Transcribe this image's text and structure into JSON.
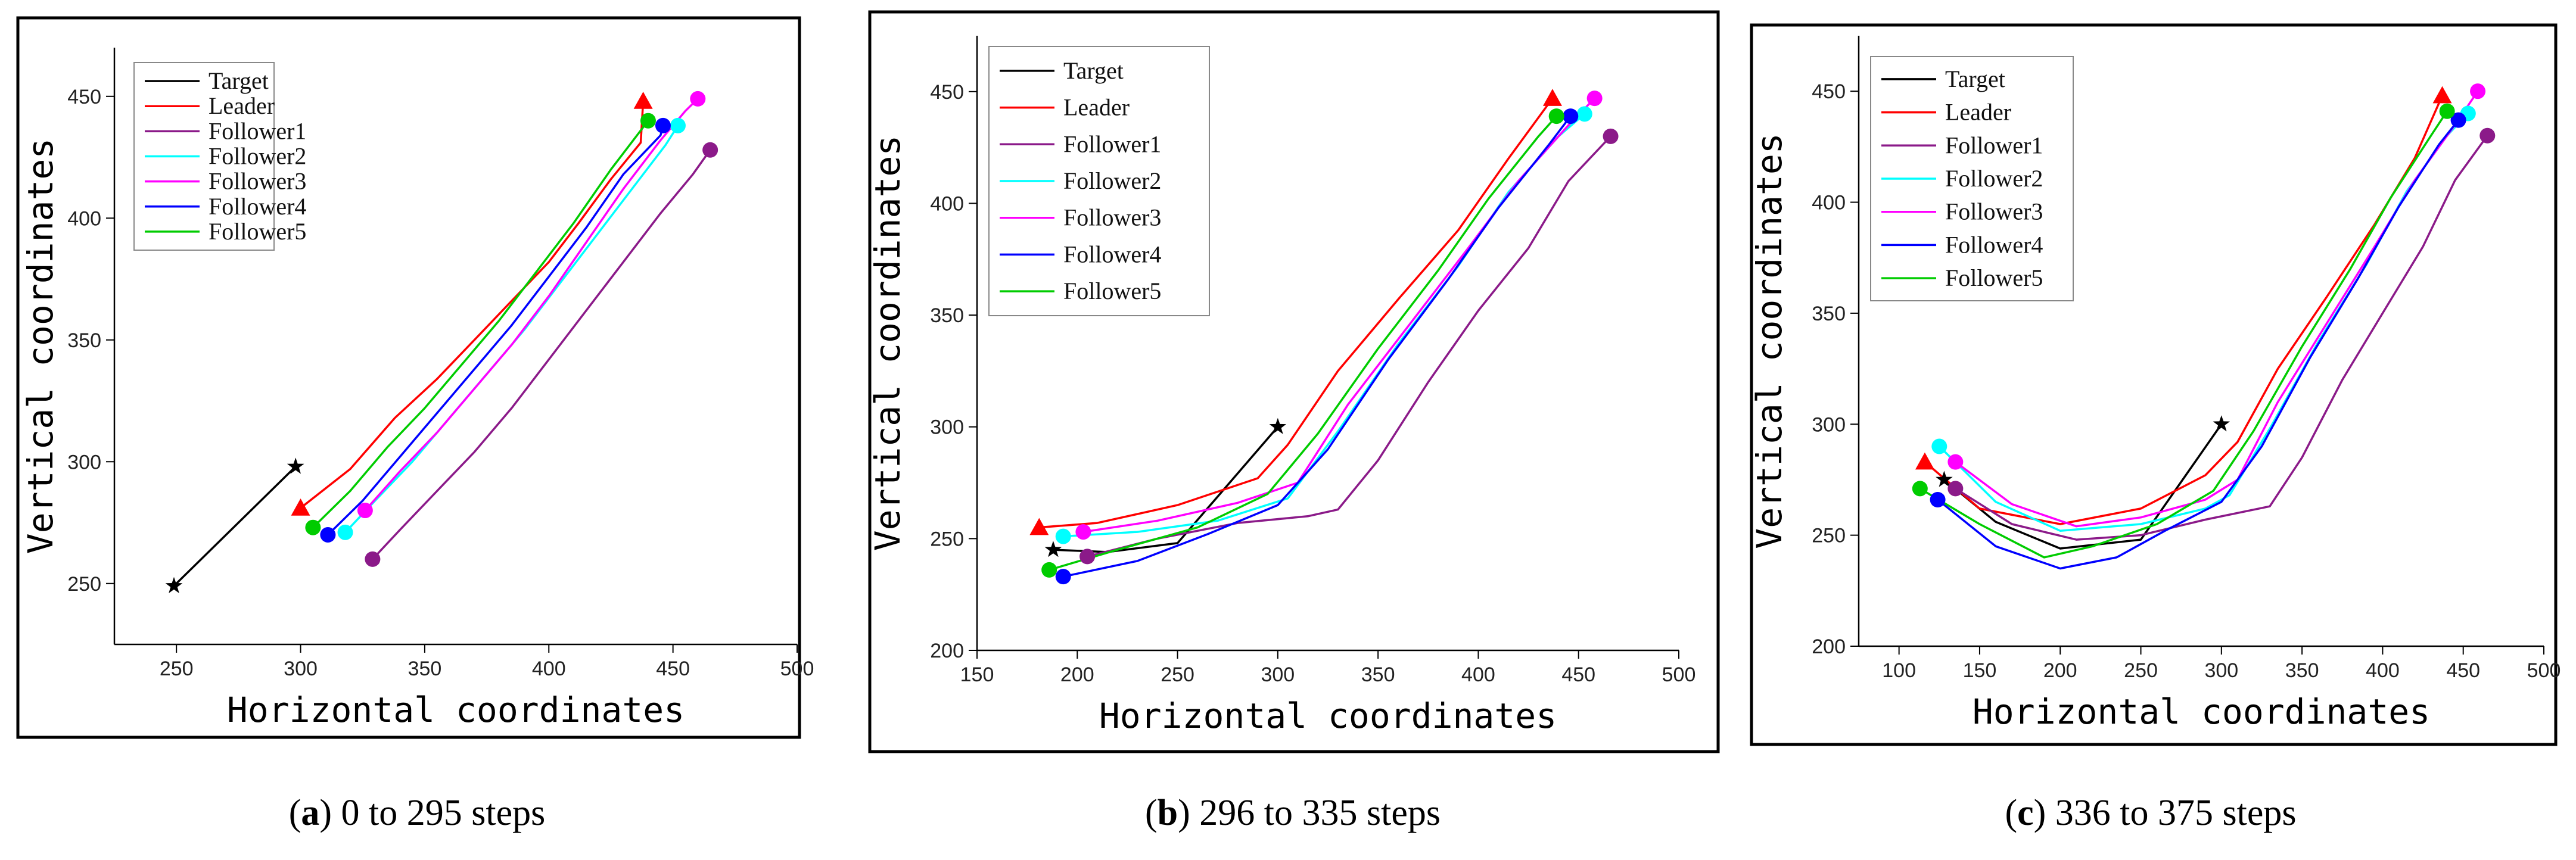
{
  "chart_data": [
    {
      "type": "line",
      "caption_letter": "a",
      "caption_rest": " 0 to 295 steps",
      "xlabel": "Horizontal coordinates",
      "ylabel": "Vertical coordinates",
      "xlim": [
        225,
        500
      ],
      "ylim": [
        225,
        470
      ],
      "xticks": [
        250,
        300,
        350,
        400,
        450,
        500
      ],
      "yticks": [
        250,
        300,
        350,
        400,
        450
      ],
      "legend_position": "top-left",
      "series": [
        {
          "name": "Target",
          "color": "#000000",
          "marker": "star",
          "points": [
            [
              249,
              249
            ],
            [
              298,
              298
            ]
          ]
        },
        {
          "name": "Leader",
          "color": "#ff0000",
          "marker": "triangle",
          "points": [
            [
              300,
              281
            ],
            [
              320,
              297
            ],
            [
              338,
              318
            ],
            [
              355,
              334
            ],
            [
              370,
              350
            ],
            [
              385,
              366
            ],
            [
              400,
              382
            ],
            [
              412,
              398
            ],
            [
              425,
              416
            ],
            [
              437,
              431
            ],
            [
              438,
              448
            ]
          ]
        },
        {
          "name": "Follower1",
          "color": "#8b1a89",
          "marker": "circle",
          "points": [
            [
              329,
              260
            ],
            [
              340,
              272
            ],
            [
              355,
              288
            ],
            [
              370,
              304
            ],
            [
              385,
              322
            ],
            [
              400,
              342
            ],
            [
              415,
              362
            ],
            [
              430,
              382
            ],
            [
              445,
              402
            ],
            [
              458,
              418
            ],
            [
              465,
              428
            ]
          ]
        },
        {
          "name": "Follower2",
          "color": "#00ffff",
          "marker": "circle",
          "points": [
            [
              318,
              271
            ],
            [
              330,
              284
            ],
            [
              345,
              300
            ],
            [
              360,
              318
            ],
            [
              375,
              336
            ],
            [
              390,
              354
            ],
            [
              405,
              374
            ],
            [
              420,
              394
            ],
            [
              435,
              414
            ],
            [
              447,
              430
            ],
            [
              452,
              438
            ]
          ]
        },
        {
          "name": "Follower3",
          "color": "#ff00ff",
          "marker": "circle",
          "points": [
            [
              326,
              280
            ],
            [
              340,
              296
            ],
            [
              355,
              312
            ],
            [
              370,
              330
            ],
            [
              385,
              348
            ],
            [
              400,
              368
            ],
            [
              415,
              390
            ],
            [
              430,
              412
            ],
            [
              445,
              432
            ],
            [
              455,
              444
            ],
            [
              460,
              449
            ]
          ]
        },
        {
          "name": "Follower4",
          "color": "#0000ff",
          "marker": "circle",
          "points": [
            [
              311,
              270
            ],
            [
              325,
              284
            ],
            [
              340,
              302
            ],
            [
              355,
              320
            ],
            [
              370,
              338
            ],
            [
              385,
              356
            ],
            [
              400,
              376
            ],
            [
              415,
              396
            ],
            [
              430,
              418
            ],
            [
              445,
              434
            ],
            [
              446,
              438
            ]
          ]
        },
        {
          "name": "Follower5",
          "color": "#00cc00",
          "marker": "circle",
          "points": [
            [
              305,
              273
            ],
            [
              320,
              288
            ],
            [
              335,
              306
            ],
            [
              350,
              322
            ],
            [
              365,
              340
            ],
            [
              380,
              358
            ],
            [
              395,
              378
            ],
            [
              410,
              398
            ],
            [
              425,
              420
            ],
            [
              437,
              436
            ],
            [
              440,
              440
            ]
          ]
        }
      ]
    },
    {
      "type": "line",
      "caption_letter": "b",
      "caption_rest": " 296 to 335 steps",
      "xlabel": "Horizontal coordinates",
      "ylabel": "Vertical coordinates",
      "xlim": [
        150,
        500
      ],
      "ylim": [
        200,
        475
      ],
      "xticks": [
        150,
        200,
        250,
        300,
        350,
        400,
        450,
        500
      ],
      "yticks": [
        200,
        250,
        300,
        350,
        400,
        450
      ],
      "legend_position": "top-left",
      "series": [
        {
          "name": "Target",
          "color": "#000000",
          "marker": "star",
          "points": [
            [
              188,
              245
            ],
            [
              215,
              244
            ],
            [
              250,
              248
            ],
            [
              300,
              300
            ]
          ]
        },
        {
          "name": "Leader",
          "color": "#ff0000",
          "marker": "triangle",
          "points": [
            [
              181,
              255
            ],
            [
              210,
              257
            ],
            [
              250,
              265
            ],
            [
              290,
              277
            ],
            [
              305,
              292
            ],
            [
              330,
              325
            ],
            [
              360,
              357
            ],
            [
              390,
              388
            ],
            [
              415,
              420
            ],
            [
              437,
              447
            ]
          ]
        },
        {
          "name": "Follower1",
          "color": "#8b1a89",
          "marker": "circle",
          "points": [
            [
              205,
              242
            ],
            [
              240,
              250
            ],
            [
              280,
              257
            ],
            [
              315,
              260
            ],
            [
              330,
              263
            ],
            [
              350,
              285
            ],
            [
              375,
              320
            ],
            [
              400,
              352
            ],
            [
              425,
              380
            ],
            [
              445,
              410
            ],
            [
              466,
              430
            ]
          ]
        },
        {
          "name": "Follower2",
          "color": "#00ffff",
          "marker": "circle",
          "points": [
            [
              193,
              251
            ],
            [
              230,
              253
            ],
            [
              270,
              258
            ],
            [
              305,
              268
            ],
            [
              330,
              298
            ],
            [
              360,
              337
            ],
            [
              390,
              372
            ],
            [
              415,
              405
            ],
            [
              440,
              430
            ],
            [
              453,
              440
            ]
          ]
        },
        {
          "name": "Follower3",
          "color": "#ff00ff",
          "marker": "circle",
          "points": [
            [
              203,
              253
            ],
            [
              240,
              258
            ],
            [
              280,
              266
            ],
            [
              310,
              275
            ],
            [
              335,
              310
            ],
            [
              365,
              345
            ],
            [
              395,
              380
            ],
            [
              420,
              410
            ],
            [
              445,
              435
            ],
            [
              458,
              447
            ]
          ]
        },
        {
          "name": "Follower4",
          "color": "#0000ff",
          "marker": "circle",
          "points": [
            [
              193,
              233
            ],
            [
              230,
              240
            ],
            [
              265,
              252
            ],
            [
              300,
              265
            ],
            [
              325,
              290
            ],
            [
              355,
              330
            ],
            [
              385,
              366
            ],
            [
              410,
              398
            ],
            [
              435,
              426
            ],
            [
              446,
              439
            ]
          ]
        },
        {
          "name": "Follower5",
          "color": "#00cc00",
          "marker": "circle",
          "points": [
            [
              186,
              236
            ],
            [
              220,
              245
            ],
            [
              260,
              255
            ],
            [
              295,
              270
            ],
            [
              320,
              297
            ],
            [
              350,
              335
            ],
            [
              380,
              370
            ],
            [
              405,
              402
            ],
            [
              430,
              430
            ],
            [
              439,
              439
            ]
          ]
        }
      ]
    },
    {
      "type": "line",
      "caption_letter": "c",
      "caption_rest": " 336 to 375 steps",
      "xlabel": "Horizontal coordinates",
      "ylabel": "Vertical coordinates",
      "xlim": [
        75,
        500
      ],
      "ylim": [
        200,
        475
      ],
      "xticks": [
        100,
        150,
        200,
        250,
        300,
        350,
        400,
        450,
        500
      ],
      "yticks": [
        200,
        250,
        300,
        350,
        400,
        450
      ],
      "legend_position": "top-left",
      "series": [
        {
          "name": "Target",
          "color": "#000000",
          "marker": "star",
          "points": [
            [
              128,
              275
            ],
            [
              160,
              256
            ],
            [
              200,
              244
            ],
            [
              250,
              248
            ],
            [
              300,
              300
            ]
          ]
        },
        {
          "name": "Leader",
          "color": "#ff0000",
          "marker": "triangle",
          "points": [
            [
              116,
              283
            ],
            [
              150,
              262
            ],
            [
              200,
              255
            ],
            [
              250,
              262
            ],
            [
              290,
              277
            ],
            [
              310,
              292
            ],
            [
              335,
              325
            ],
            [
              365,
              357
            ],
            [
              395,
              390
            ],
            [
              420,
              420
            ],
            [
              437,
              448
            ]
          ]
        },
        {
          "name": "Follower1",
          "color": "#8b1a89",
          "marker": "circle",
          "points": [
            [
              135,
              271
            ],
            [
              170,
              255
            ],
            [
              210,
              248
            ],
            [
              250,
              250
            ],
            [
              290,
              257
            ],
            [
              330,
              263
            ],
            [
              350,
              285
            ],
            [
              375,
              320
            ],
            [
              400,
              350
            ],
            [
              425,
              380
            ],
            [
              445,
              410
            ],
            [
              465,
              430
            ]
          ]
        },
        {
          "name": "Follower2",
          "color": "#00ffff",
          "marker": "circle",
          "points": [
            [
              125,
              290
            ],
            [
              160,
              265
            ],
            [
              200,
              252
            ],
            [
              250,
              255
            ],
            [
              290,
              262
            ],
            [
              305,
              268
            ],
            [
              330,
              298
            ],
            [
              360,
              337
            ],
            [
              390,
              372
            ],
            [
              415,
              405
            ],
            [
              440,
              430
            ],
            [
              453,
              440
            ]
          ]
        },
        {
          "name": "Follower3",
          "color": "#ff00ff",
          "marker": "circle",
          "points": [
            [
              135,
              283
            ],
            [
              170,
              264
            ],
            [
              210,
              254
            ],
            [
              250,
              258
            ],
            [
              290,
              266
            ],
            [
              310,
              275
            ],
            [
              335,
              310
            ],
            [
              365,
              345
            ],
            [
              395,
              380
            ],
            [
              420,
              410
            ],
            [
              445,
              435
            ],
            [
              459,
              450
            ]
          ]
        },
        {
          "name": "Follower4",
          "color": "#0000ff",
          "marker": "circle",
          "points": [
            [
              124,
              266
            ],
            [
              160,
              245
            ],
            [
              200,
              235
            ],
            [
              235,
              240
            ],
            [
              265,
              252
            ],
            [
              300,
              265
            ],
            [
              325,
              290
            ],
            [
              355,
              330
            ],
            [
              385,
              366
            ],
            [
              410,
              398
            ],
            [
              435,
              426
            ],
            [
              447,
              437
            ]
          ]
        },
        {
          "name": "Follower5",
          "color": "#00cc00",
          "marker": "circle",
          "points": [
            [
              113,
              271
            ],
            [
              150,
              255
            ],
            [
              190,
              240
            ],
            [
              220,
              245
            ],
            [
              260,
              255
            ],
            [
              295,
              270
            ],
            [
              320,
              297
            ],
            [
              350,
              335
            ],
            [
              380,
              370
            ],
            [
              405,
              402
            ],
            [
              430,
              430
            ],
            [
              440,
              441
            ]
          ]
        }
      ]
    }
  ]
}
